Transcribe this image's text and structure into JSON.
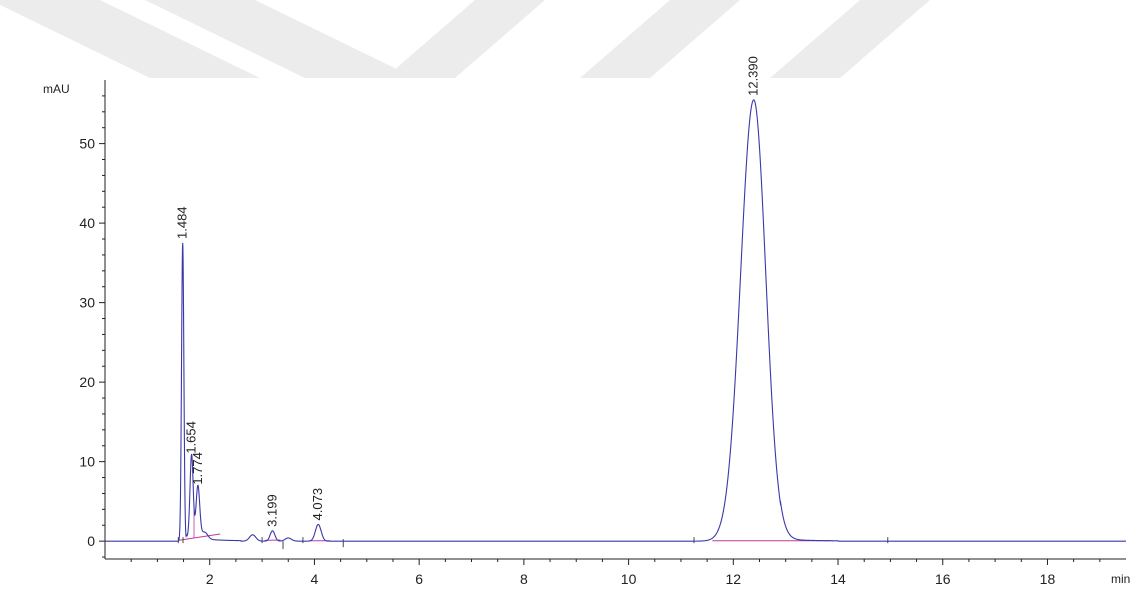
{
  "chart_data": {
    "type": "line",
    "ylabel": "mAU",
    "xlabel": "min",
    "xlim": [
      0,
      19.5
    ],
    "ylim": [
      -3,
      58
    ],
    "x_ticks": [
      2,
      4,
      6,
      8,
      10,
      12,
      14,
      16,
      18
    ],
    "y_ticks": [
      0,
      10,
      20,
      30,
      40,
      50
    ],
    "peaks": [
      {
        "label": "1.484",
        "rt": 1.484,
        "height": 37.5
      },
      {
        "label": "1.654",
        "rt": 1.654,
        "height": 10.5
      },
      {
        "label": "1.774",
        "rt": 1.774,
        "height": 6.6
      },
      {
        "label": "3.199",
        "rt": 3.199,
        "height": 1.3
      },
      {
        "label": "4.073",
        "rt": 4.073,
        "height": 2.1
      },
      {
        "label": "12.390",
        "rt": 12.39,
        "height": 55.5
      }
    ],
    "minor_peaks": [
      {
        "rt": 1.9,
        "height": 0.9
      },
      {
        "rt": 2.82,
        "height": 0.8
      },
      {
        "rt": 3.5,
        "height": 0.4
      }
    ],
    "signal_end": 17.05,
    "series_colors": {
      "signal": "#3a38a8",
      "baseline": "#c0399a"
    }
  }
}
